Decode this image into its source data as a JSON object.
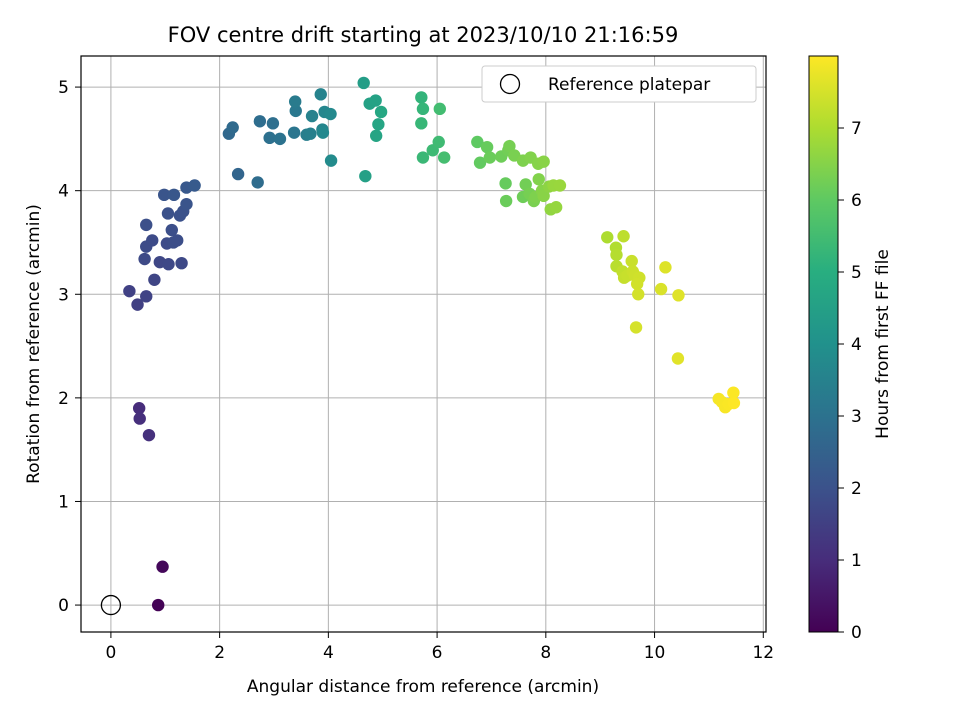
{
  "chart_data": {
    "type": "scatter",
    "title": "FOV centre drift starting at 2023/10/10 21:16:59",
    "xlabel": "Angular distance from reference (arcmin)",
    "ylabel": "Rotation from reference (arcmin)",
    "xlim": [
      -0.55,
      12.05
    ],
    "ylim": [
      -0.26,
      5.3
    ],
    "xticks": [
      0,
      2,
      4,
      6,
      8,
      10,
      12
    ],
    "yticks": [
      0,
      1,
      2,
      3,
      4,
      5
    ],
    "grid": true,
    "legend": {
      "placement": "top-right",
      "entries": [
        "Reference platepar"
      ]
    },
    "reference_point": {
      "x": 0,
      "y": 0
    },
    "colorbar": {
      "label": "Hours from first FF file",
      "range": [
        0,
        8
      ],
      "ticks": [
        0,
        1,
        2,
        3,
        4,
        5,
        6,
        7
      ],
      "colormap": "viridis"
    },
    "series": [
      {
        "color_values": "hours",
        "points": [
          {
            "x": 0.87,
            "y": 0.0,
            "h": 0.05
          },
          {
            "x": 0.95,
            "y": 0.37,
            "h": 0.15
          },
          {
            "x": 0.52,
            "y": 1.9,
            "h": 1.0
          },
          {
            "x": 0.53,
            "y": 1.8,
            "h": 1.05
          },
          {
            "x": 0.7,
            "y": 1.64,
            "h": 1.1
          },
          {
            "x": 0.49,
            "y": 2.9,
            "h": 1.5
          },
          {
            "x": 0.34,
            "y": 3.03,
            "h": 1.55
          },
          {
            "x": 0.65,
            "y": 2.98,
            "h": 1.6
          },
          {
            "x": 0.8,
            "y": 3.14,
            "h": 1.65
          },
          {
            "x": 0.9,
            "y": 3.31,
            "h": 1.7
          },
          {
            "x": 1.06,
            "y": 3.29,
            "h": 1.72
          },
          {
            "x": 1.3,
            "y": 3.3,
            "h": 1.75
          },
          {
            "x": 0.62,
            "y": 3.34,
            "h": 1.78
          },
          {
            "x": 0.65,
            "y": 3.46,
            "h": 1.8
          },
          {
            "x": 0.76,
            "y": 3.52,
            "h": 1.82
          },
          {
            "x": 1.03,
            "y": 3.49,
            "h": 1.85
          },
          {
            "x": 1.15,
            "y": 3.5,
            "h": 1.88
          },
          {
            "x": 1.22,
            "y": 3.52,
            "h": 1.9
          },
          {
            "x": 1.12,
            "y": 3.62,
            "h": 1.92
          },
          {
            "x": 0.65,
            "y": 3.67,
            "h": 1.94
          },
          {
            "x": 1.05,
            "y": 3.78,
            "h": 1.96
          },
          {
            "x": 1.27,
            "y": 3.76,
            "h": 1.98
          },
          {
            "x": 1.33,
            "y": 3.8,
            "h": 2.0
          },
          {
            "x": 1.39,
            "y": 3.87,
            "h": 2.05
          },
          {
            "x": 0.98,
            "y": 3.96,
            "h": 2.1
          },
          {
            "x": 1.16,
            "y": 3.96,
            "h": 2.15
          },
          {
            "x": 1.39,
            "y": 4.03,
            "h": 2.2
          },
          {
            "x": 1.54,
            "y": 4.05,
            "h": 2.25
          },
          {
            "x": 2.34,
            "y": 4.16,
            "h": 2.6
          },
          {
            "x": 2.7,
            "y": 4.08,
            "h": 2.8
          },
          {
            "x": 2.17,
            "y": 4.55,
            "h": 2.7
          },
          {
            "x": 2.24,
            "y": 4.61,
            "h": 2.75
          },
          {
            "x": 2.74,
            "y": 4.67,
            "h": 2.85
          },
          {
            "x": 2.98,
            "y": 4.65,
            "h": 2.9
          },
          {
            "x": 2.92,
            "y": 4.51,
            "h": 2.95
          },
          {
            "x": 3.11,
            "y": 4.5,
            "h": 3.0
          },
          {
            "x": 3.37,
            "y": 4.56,
            "h": 3.1
          },
          {
            "x": 3.4,
            "y": 4.77,
            "h": 3.2
          },
          {
            "x": 3.39,
            "y": 4.86,
            "h": 3.3
          },
          {
            "x": 3.6,
            "y": 4.54,
            "h": 3.4
          },
          {
            "x": 3.67,
            "y": 4.55,
            "h": 3.45
          },
          {
            "x": 3.7,
            "y": 4.72,
            "h": 3.5
          },
          {
            "x": 3.86,
            "y": 4.93,
            "h": 3.55
          },
          {
            "x": 3.89,
            "y": 4.59,
            "h": 3.6
          },
          {
            "x": 3.93,
            "y": 4.76,
            "h": 3.65
          },
          {
            "x": 3.9,
            "y": 4.56,
            "h": 3.7
          },
          {
            "x": 4.04,
            "y": 4.74,
            "h": 3.75
          },
          {
            "x": 4.05,
            "y": 4.29,
            "h": 3.8
          },
          {
            "x": 4.65,
            "y": 5.04,
            "h": 4.4
          },
          {
            "x": 4.68,
            "y": 4.14,
            "h": 4.5
          },
          {
            "x": 4.76,
            "y": 4.84,
            "h": 4.55
          },
          {
            "x": 4.87,
            "y": 4.87,
            "h": 4.6
          },
          {
            "x": 4.88,
            "y": 4.53,
            "h": 4.65
          },
          {
            "x": 4.92,
            "y": 4.64,
            "h": 4.7
          },
          {
            "x": 4.97,
            "y": 4.76,
            "h": 4.75
          },
          {
            "x": 5.71,
            "y": 4.9,
            "h": 5.2
          },
          {
            "x": 5.74,
            "y": 4.79,
            "h": 5.25
          },
          {
            "x": 5.71,
            "y": 4.65,
            "h": 5.3
          },
          {
            "x": 5.74,
            "y": 4.32,
            "h": 5.35
          },
          {
            "x": 5.92,
            "y": 4.39,
            "h": 5.4
          },
          {
            "x": 6.03,
            "y": 4.47,
            "h": 5.45
          },
          {
            "x": 6.05,
            "y": 4.79,
            "h": 5.5
          },
          {
            "x": 6.13,
            "y": 4.32,
            "h": 5.55
          },
          {
            "x": 6.74,
            "y": 4.47,
            "h": 6.0
          },
          {
            "x": 6.79,
            "y": 4.27,
            "h": 6.05
          },
          {
            "x": 6.92,
            "y": 4.42,
            "h": 6.1
          },
          {
            "x": 6.97,
            "y": 4.32,
            "h": 6.15
          },
          {
            "x": 7.18,
            "y": 4.33,
            "h": 6.2
          },
          {
            "x": 7.31,
            "y": 4.39,
            "h": 6.25
          },
          {
            "x": 7.33,
            "y": 4.43,
            "h": 6.3
          },
          {
            "x": 7.42,
            "y": 4.34,
            "h": 6.35
          },
          {
            "x": 7.58,
            "y": 4.29,
            "h": 6.4
          },
          {
            "x": 7.72,
            "y": 4.32,
            "h": 6.45
          },
          {
            "x": 7.86,
            "y": 4.26,
            "h": 6.5
          },
          {
            "x": 7.96,
            "y": 4.28,
            "h": 6.55
          },
          {
            "x": 7.26,
            "y": 4.07,
            "h": 6.1
          },
          {
            "x": 7.27,
            "y": 3.9,
            "h": 6.15
          },
          {
            "x": 7.58,
            "y": 3.94,
            "h": 6.2
          },
          {
            "x": 7.63,
            "y": 4.06,
            "h": 6.25
          },
          {
            "x": 7.7,
            "y": 3.97,
            "h": 6.3
          },
          {
            "x": 7.78,
            "y": 3.9,
            "h": 6.35
          },
          {
            "x": 7.81,
            "y": 3.94,
            "h": 6.4
          },
          {
            "x": 7.87,
            "y": 4.11,
            "h": 6.45
          },
          {
            "x": 7.93,
            "y": 4.0,
            "h": 6.5
          },
          {
            "x": 7.96,
            "y": 3.95,
            "h": 6.55
          },
          {
            "x": 8.06,
            "y": 4.04,
            "h": 6.6
          },
          {
            "x": 8.09,
            "y": 3.82,
            "h": 6.65
          },
          {
            "x": 8.19,
            "y": 3.84,
            "h": 6.7
          },
          {
            "x": 8.14,
            "y": 4.05,
            "h": 6.72
          },
          {
            "x": 8.26,
            "y": 4.05,
            "h": 6.75
          },
          {
            "x": 9.13,
            "y": 3.55,
            "h": 7.0
          },
          {
            "x": 9.29,
            "y": 3.45,
            "h": 7.05
          },
          {
            "x": 9.3,
            "y": 3.38,
            "h": 7.1
          },
          {
            "x": 9.3,
            "y": 3.27,
            "h": 7.15
          },
          {
            "x": 9.43,
            "y": 3.56,
            "h": 7.2
          },
          {
            "x": 9.41,
            "y": 3.22,
            "h": 7.25
          },
          {
            "x": 9.44,
            "y": 3.16,
            "h": 7.3
          },
          {
            "x": 9.5,
            "y": 3.18,
            "h": 7.32
          },
          {
            "x": 9.58,
            "y": 3.32,
            "h": 7.35
          },
          {
            "x": 9.6,
            "y": 3.22,
            "h": 7.38
          },
          {
            "x": 9.64,
            "y": 3.18,
            "h": 7.4
          },
          {
            "x": 9.72,
            "y": 3.16,
            "h": 7.42
          },
          {
            "x": 9.68,
            "y": 3.1,
            "h": 7.45
          },
          {
            "x": 9.7,
            "y": 3.0,
            "h": 7.48
          },
          {
            "x": 9.66,
            "y": 2.68,
            "h": 7.5
          },
          {
            "x": 10.12,
            "y": 3.05,
            "h": 7.55
          },
          {
            "x": 10.2,
            "y": 3.26,
            "h": 7.6
          },
          {
            "x": 10.44,
            "y": 2.99,
            "h": 7.62
          },
          {
            "x": 10.43,
            "y": 2.38,
            "h": 7.65
          },
          {
            "x": 11.18,
            "y": 1.99,
            "h": 7.9
          },
          {
            "x": 11.24,
            "y": 1.96,
            "h": 7.92
          },
          {
            "x": 11.3,
            "y": 1.91,
            "h": 7.94
          },
          {
            "x": 11.36,
            "y": 1.94,
            "h": 7.96
          },
          {
            "x": 11.45,
            "y": 2.05,
            "h": 7.98
          },
          {
            "x": 11.46,
            "y": 1.95,
            "h": 8.0
          }
        ]
      }
    ]
  }
}
